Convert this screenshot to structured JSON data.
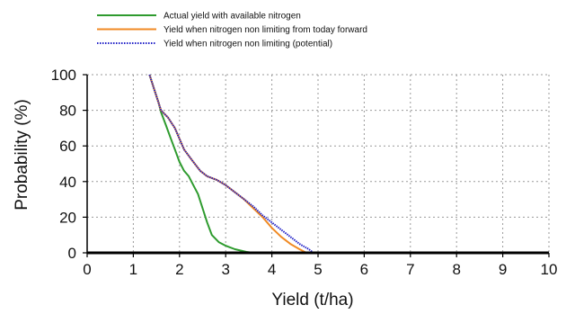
{
  "chart_data": {
    "type": "line",
    "title": "",
    "xlabel": "Yield (t/ha)",
    "ylabel": "Probability (%)",
    "xlim": [
      0,
      10
    ],
    "ylim": [
      0,
      100
    ],
    "xticks": [
      "0",
      "1",
      "2",
      "3",
      "4",
      "5",
      "6",
      "7",
      "8",
      "9",
      "10"
    ],
    "yticks": [
      "0",
      "20",
      "40",
      "60",
      "80",
      "100"
    ],
    "grid": true,
    "legend_position": "top",
    "series": [
      {
        "name": "Actual yield with available nitrogen",
        "color": "#2e9b2e",
        "style": "solid",
        "points": [
          [
            1.35,
            100
          ],
          [
            1.45,
            92
          ],
          [
            1.55,
            84
          ],
          [
            1.6,
            79
          ],
          [
            1.7,
            72
          ],
          [
            1.8,
            65
          ],
          [
            1.9,
            58
          ],
          [
            2.0,
            51
          ],
          [
            2.1,
            46
          ],
          [
            2.2,
            43
          ],
          [
            2.3,
            38
          ],
          [
            2.4,
            33
          ],
          [
            2.5,
            25
          ],
          [
            2.6,
            17
          ],
          [
            2.7,
            10
          ],
          [
            2.85,
            6
          ],
          [
            3.0,
            4
          ],
          [
            3.2,
            2
          ],
          [
            3.45,
            0.5
          ],
          [
            3.6,
            0
          ]
        ]
      },
      {
        "name": "Yield when nitrogen non limiting from today forward",
        "color": "#f08a24",
        "style": "solid",
        "points": [
          [
            1.35,
            100
          ],
          [
            1.45,
            92
          ],
          [
            1.6,
            80
          ],
          [
            1.75,
            76
          ],
          [
            1.9,
            70
          ],
          [
            2.0,
            64
          ],
          [
            2.1,
            58
          ],
          [
            2.3,
            51
          ],
          [
            2.45,
            46
          ],
          [
            2.6,
            43
          ],
          [
            2.8,
            41
          ],
          [
            3.0,
            38
          ],
          [
            3.2,
            34
          ],
          [
            3.4,
            30
          ],
          [
            3.6,
            25
          ],
          [
            3.8,
            20
          ],
          [
            4.0,
            14
          ],
          [
            4.2,
            9
          ],
          [
            4.4,
            5
          ],
          [
            4.6,
            2
          ],
          [
            4.75,
            0
          ]
        ]
      },
      {
        "name": "Yield when nitrogen non limiting (potential)",
        "color": "#2424c8",
        "style": "dotted",
        "points": [
          [
            1.35,
            100
          ],
          [
            1.45,
            92
          ],
          [
            1.6,
            80
          ],
          [
            1.75,
            76
          ],
          [
            1.9,
            70
          ],
          [
            2.0,
            64
          ],
          [
            2.1,
            58
          ],
          [
            2.3,
            51
          ],
          [
            2.45,
            46
          ],
          [
            2.6,
            43
          ],
          [
            2.8,
            41
          ],
          [
            3.0,
            38
          ],
          [
            3.2,
            34
          ],
          [
            3.4,
            30
          ],
          [
            3.6,
            26
          ],
          [
            3.8,
            21
          ],
          [
            4.0,
            17
          ],
          [
            4.2,
            13
          ],
          [
            4.4,
            9
          ],
          [
            4.6,
            5
          ],
          [
            4.8,
            2
          ],
          [
            4.9,
            0
          ]
        ]
      }
    ]
  }
}
